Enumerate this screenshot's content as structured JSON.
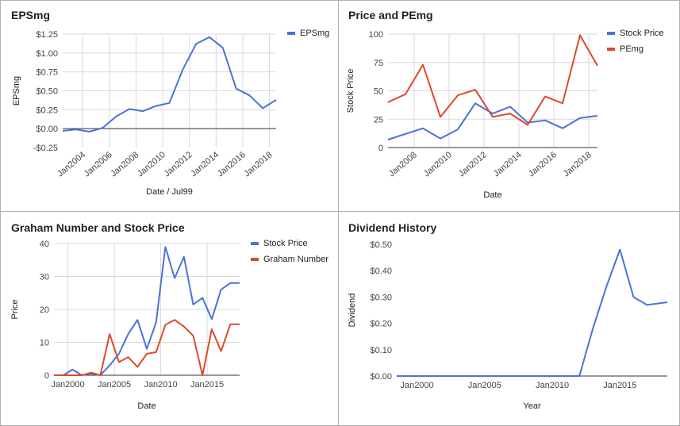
{
  "colors": {
    "blue": "#4a73d6",
    "red": "#dc4a2c",
    "grid": "#d9d9d9",
    "axis": "#333333"
  },
  "chart_data": [
    {
      "type": "line",
      "title": "EPSmg",
      "xlabel": "Date / Jul99",
      "ylabel": "EPSmg",
      "xlim": [
        2002.5,
        2018.5
      ],
      "ylim": [
        -0.25,
        1.25
      ],
      "y_ticks": [
        -0.25,
        0,
        0.25,
        0.5,
        0.75,
        1.0,
        1.25
      ],
      "y_tick_labels": [
        "-$0.25",
        "$0.00",
        "$0.25",
        "$0.50",
        "$0.75",
        "$1.00",
        "$1.25"
      ],
      "x_ticks": [
        2004,
        2006,
        2008,
        2010,
        2012,
        2014,
        2016,
        2018
      ],
      "x_tick_labels": [
        "Jan2004",
        "Jan2006",
        "Jan2008",
        "Jan2010",
        "Jan2012",
        "Jan2014",
        "Jan2016",
        "Jan2018"
      ],
      "x_tick_rotate": true,
      "grid": true,
      "zero_line": true,
      "legend": "top-right",
      "series": [
        {
          "name": "EPSmg",
          "color": "#4a73d6",
          "x": [
            2002.5,
            2003.5,
            2004.5,
            2005.5,
            2006.5,
            2007.5,
            2008.5,
            2009.5,
            2010.5,
            2011.5,
            2012.5,
            2013.5,
            2014.5,
            2015.5,
            2016.5,
            2017.5,
            2018.5
          ],
          "y": [
            -0.03,
            -0.01,
            -0.04,
            0.01,
            0.16,
            0.26,
            0.23,
            0.3,
            0.34,
            0.78,
            1.12,
            1.21,
            1.07,
            0.53,
            0.44,
            0.27,
            0.38
          ]
        }
      ]
    },
    {
      "type": "line",
      "title": "Price and PEmg",
      "xlabel": "Date",
      "ylabel": "Stock Price",
      "xlim": [
        2006.5,
        2018.5
      ],
      "ylim": [
        0,
        100
      ],
      "y_ticks": [
        0,
        25,
        50,
        75,
        100
      ],
      "y_tick_labels": [
        "0",
        "25",
        "50",
        "75",
        "100"
      ],
      "x_ticks": [
        2008,
        2010,
        2012,
        2014,
        2016,
        2018
      ],
      "x_tick_labels": [
        "Jan2008",
        "Jan2010",
        "Jan2012",
        "Jan2014",
        "Jan2016",
        "Jan2018"
      ],
      "x_tick_rotate": true,
      "grid": true,
      "legend": "top-right",
      "series": [
        {
          "name": "Stock Price",
          "color": "#4a73d6",
          "x": [
            2006.5,
            2007.5,
            2008.5,
            2009.5,
            2010.5,
            2011.5,
            2012.5,
            2013.5,
            2014.5,
            2015.5,
            2016.5,
            2017.5,
            2018.5
          ],
          "y": [
            7,
            12,
            17,
            8,
            16,
            39,
            30,
            36,
            22,
            24,
            17,
            26,
            28
          ]
        },
        {
          "name": "PEmg",
          "color": "#dc4a2c",
          "x": [
            2006.5,
            2007.5,
            2008.5,
            2009.5,
            2010.5,
            2011.5,
            2012.5,
            2013.5,
            2014.5,
            2015.5,
            2016.5,
            2017.5,
            2018.5
          ],
          "y": [
            40,
            47,
            73,
            27,
            46,
            51,
            27,
            30,
            20,
            45,
            39,
            99,
            72
          ]
        }
      ]
    },
    {
      "type": "line",
      "title": "Graham Number and Stock Price",
      "xlabel": "Date",
      "ylabel": "Price",
      "xlim": [
        1998.5,
        2018.5
      ],
      "ylim": [
        0,
        40
      ],
      "y_ticks": [
        0,
        10,
        20,
        30,
        40
      ],
      "y_tick_labels": [
        "0",
        "10",
        "20",
        "30",
        "40"
      ],
      "x_ticks": [
        2000,
        2005,
        2010,
        2015
      ],
      "x_tick_labels": [
        "Jan2000",
        "Jan2005",
        "Jan2010",
        "Jan2015"
      ],
      "x_tick_rotate": false,
      "grid": true,
      "legend": "top-right",
      "series": [
        {
          "name": "Stock Price",
          "color": "#4a73d6",
          "x": [
            1998.5,
            1999.5,
            2000.5,
            2001.5,
            2002.5,
            2003.5,
            2004.5,
            2005.5,
            2006.5,
            2007.5,
            2008.5,
            2009.5,
            2010.5,
            2011.5,
            2012.5,
            2013.5,
            2014.5,
            2015.5,
            2016.5,
            2017.5,
            2018.5
          ],
          "y": [
            0,
            0,
            1.7,
            0,
            0.5,
            0,
            3,
            6.5,
            12.5,
            16.8,
            8,
            16,
            39,
            29.5,
            36,
            21.5,
            23.5,
            17,
            26,
            28,
            28
          ]
        },
        {
          "name": "Graham Number",
          "color": "#dc4a2c",
          "x": [
            1998.5,
            1999.5,
            2000.5,
            2001.5,
            2002.5,
            2003.5,
            2004.5,
            2005.5,
            2006.5,
            2007.5,
            2008.5,
            2009.5,
            2010.5,
            2011.5,
            2012.5,
            2013.5,
            2014.5,
            2015.5,
            2016.5,
            2017.5,
            2018.5
          ],
          "y": [
            0,
            0,
            0,
            0,
            0.8,
            0,
            12.5,
            4,
            5.5,
            2.5,
            6.5,
            7,
            15.3,
            16.8,
            14.8,
            12,
            0,
            14,
            7.3,
            15.5,
            15.5
          ]
        }
      ]
    },
    {
      "type": "line",
      "title": "Dividend History",
      "xlabel": "Year",
      "ylabel": "Dividend",
      "xlim": [
        1998.5,
        2018.5
      ],
      "ylim": [
        0,
        0.5
      ],
      "y_ticks": [
        0,
        0.1,
        0.2,
        0.3,
        0.4,
        0.5
      ],
      "y_tick_labels": [
        "$0.00",
        "$0.10",
        "$0.20",
        "$0.30",
        "$0.40",
        "$0.50"
      ],
      "x_ticks": [
        2000,
        2005,
        2010,
        2015
      ],
      "x_tick_labels": [
        "Jan2000",
        "Jan2005",
        "Jan2010",
        "Jan2015"
      ],
      "x_tick_rotate": false,
      "grid": false,
      "legend": "none",
      "series": [
        {
          "name": "",
          "color": "#4a73d6",
          "x": [
            1998.5,
            2012,
            2013,
            2014,
            2015,
            2016,
            2017,
            2018.5
          ],
          "y": [
            0,
            0,
            0.18,
            0.34,
            0.48,
            0.3,
            0.27,
            0.28
          ]
        }
      ]
    }
  ]
}
